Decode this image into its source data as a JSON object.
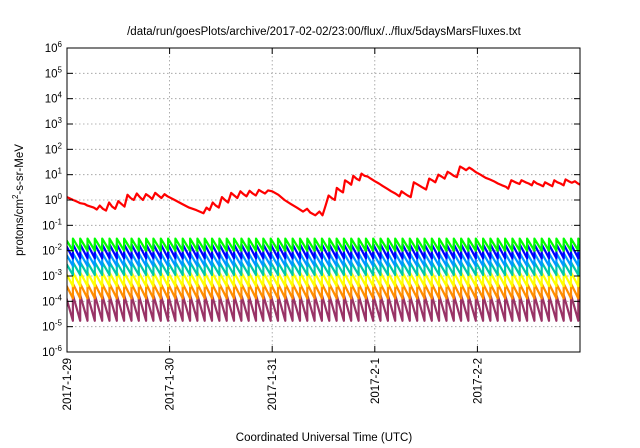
{
  "chart_data": {
    "type": "line",
    "title": "/data/run/goesPlots/archive/2017-02-02/23:00/flux/../flux/5daysMarsFluxes.txt",
    "xlabel": "Coordinated Universal Time (UTC)",
    "ylabel_prefix": "protons/cm",
    "ylabel_superscript": "2",
    "ylabel_suffix": "-s-sr-MeV",
    "x_unit": "day offset from 2017-1-29 00:00 UTC",
    "xlim": [
      0,
      5
    ],
    "x_ticks": [
      {
        "x": 0,
        "label": "2017-1-29"
      },
      {
        "x": 1,
        "label": "2017-1-30"
      },
      {
        "x": 2,
        "label": "2017-1-31"
      },
      {
        "x": 3,
        "label": "2017-2-1"
      },
      {
        "x": 4,
        "label": "2017-2-2"
      }
    ],
    "y_scale": "log",
    "ylim_exponent": [
      -6,
      6
    ],
    "y_ticks": [
      {
        "exp": 6,
        "base": "10",
        "sup": "6"
      },
      {
        "exp": 5,
        "base": "10",
        "sup": "5"
      },
      {
        "exp": 4,
        "base": "10",
        "sup": "4"
      },
      {
        "exp": 3,
        "base": "10",
        "sup": "3"
      },
      {
        "exp": 2,
        "base": "10",
        "sup": "2"
      },
      {
        "exp": 1,
        "base": "10",
        "sup": "1"
      },
      {
        "exp": 0,
        "base": "10",
        "sup": "0"
      },
      {
        "exp": -1,
        "base": "10",
        "sup": "-1"
      },
      {
        "exp": -2,
        "base": "10",
        "sup": "-2"
      },
      {
        "exp": -3,
        "base": "10",
        "sup": "-3"
      },
      {
        "exp": -4,
        "base": "10",
        "sup": "-4"
      },
      {
        "exp": -5,
        "base": "10",
        "sup": "-5"
      },
      {
        "exp": -6,
        "base": "10",
        "sup": "-6"
      }
    ],
    "grid": true,
    "legend": "none",
    "red_series": {
      "color": "#ff0000",
      "points": [
        [
          0.0,
          1.3
        ],
        [
          0.06,
          1.0
        ],
        [
          0.1,
          0.85
        ],
        [
          0.13,
          0.75
        ],
        [
          0.17,
          0.7
        ],
        [
          0.2,
          0.6
        ],
        [
          0.23,
          0.55
        ],
        [
          0.26,
          0.5
        ],
        [
          0.29,
          0.42
        ],
        [
          0.32,
          0.6
        ],
        [
          0.35,
          0.45
        ],
        [
          0.38,
          0.38
        ],
        [
          0.41,
          0.8
        ],
        [
          0.44,
          0.55
        ],
        [
          0.47,
          0.45
        ],
        [
          0.5,
          0.9
        ],
        [
          0.53,
          0.7
        ],
        [
          0.56,
          0.55
        ],
        [
          0.59,
          1.6
        ],
        [
          0.62,
          1.2
        ],
        [
          0.65,
          1.0
        ],
        [
          0.68,
          1.8
        ],
        [
          0.71,
          1.3
        ],
        [
          0.74,
          1.0
        ],
        [
          0.77,
          1.7
        ],
        [
          0.8,
          1.4
        ],
        [
          0.83,
          1.1
        ],
        [
          0.86,
          1.9
        ],
        [
          0.89,
          1.5
        ],
        [
          0.92,
          1.2
        ],
        [
          0.95,
          1.7
        ],
        [
          0.98,
          1.4
        ],
        [
          1.05,
          1.0
        ],
        [
          1.12,
          0.7
        ],
        [
          1.19,
          0.5
        ],
        [
          1.26,
          0.4
        ],
        [
          1.33,
          0.3
        ],
        [
          1.36,
          0.5
        ],
        [
          1.39,
          0.4
        ],
        [
          1.42,
          0.8
        ],
        [
          1.45,
          0.6
        ],
        [
          1.48,
          0.5
        ],
        [
          1.51,
          1.3
        ],
        [
          1.54,
          1.0
        ],
        [
          1.57,
          0.8
        ],
        [
          1.6,
          1.9
        ],
        [
          1.63,
          1.5
        ],
        [
          1.66,
          1.2
        ],
        [
          1.69,
          2.2
        ],
        [
          1.72,
          1.7
        ],
        [
          1.75,
          1.4
        ],
        [
          1.78,
          2.3
        ],
        [
          1.81,
          1.8
        ],
        [
          1.84,
          1.5
        ],
        [
          1.87,
          2.5
        ],
        [
          1.9,
          2.1
        ],
        [
          1.93,
          1.8
        ],
        [
          1.96,
          2.4
        ],
        [
          2.0,
          2.2
        ],
        [
          2.06,
          1.6
        ],
        [
          2.12,
          1.0
        ],
        [
          2.18,
          0.7
        ],
        [
          2.24,
          0.5
        ],
        [
          2.3,
          0.35
        ],
        [
          2.34,
          0.45
        ],
        [
          2.37,
          0.32
        ],
        [
          2.42,
          0.25
        ],
        [
          2.46,
          0.35
        ],
        [
          2.49,
          0.25
        ],
        [
          2.52,
          0.6
        ],
        [
          2.55,
          1.5
        ],
        [
          2.58,
          1.2
        ],
        [
          2.61,
          1.0
        ],
        [
          2.63,
          3.0
        ],
        [
          2.66,
          2.4
        ],
        [
          2.69,
          2.0
        ],
        [
          2.71,
          6.0
        ],
        [
          2.74,
          5.0
        ],
        [
          2.77,
          4.0
        ],
        [
          2.79,
          9.0
        ],
        [
          2.82,
          7.0
        ],
        [
          2.85,
          6.0
        ],
        [
          2.87,
          11.0
        ],
        [
          2.9,
          9.0
        ],
        [
          2.93,
          8.5
        ],
        [
          2.96,
          7.0
        ],
        [
          3.0,
          5.5
        ],
        [
          3.04,
          4.5
        ],
        [
          3.08,
          3.5
        ],
        [
          3.12,
          2.8
        ],
        [
          3.16,
          2.2
        ],
        [
          3.2,
          1.8
        ],
        [
          3.24,
          1.4
        ],
        [
          3.26,
          2.2
        ],
        [
          3.29,
          1.8
        ],
        [
          3.32,
          1.5
        ],
        [
          3.35,
          1.3
        ],
        [
          3.38,
          5.0
        ],
        [
          3.42,
          4.0
        ],
        [
          3.46,
          3.2
        ],
        [
          3.5,
          2.6
        ],
        [
          3.53,
          7.0
        ],
        [
          3.56,
          6.0
        ],
        [
          3.59,
          5.0
        ],
        [
          3.62,
          10.0
        ],
        [
          3.65,
          8.5
        ],
        [
          3.68,
          7.0
        ],
        [
          3.71,
          13.0
        ],
        [
          3.74,
          11.0
        ],
        [
          3.77,
          9.0
        ],
        [
          3.8,
          8.0
        ],
        [
          3.83,
          21.0
        ],
        [
          3.86,
          18.0
        ],
        [
          3.89,
          15.0
        ],
        [
          3.92,
          19.0
        ],
        [
          3.95,
          16.0
        ],
        [
          3.98,
          13.0
        ],
        [
          4.03,
          10.0
        ],
        [
          4.08,
          7.5
        ],
        [
          4.12,
          6.5
        ],
        [
          4.16,
          5.5
        ],
        [
          4.2,
          4.5
        ],
        [
          4.24,
          3.8
        ],
        [
          4.28,
          3.3
        ],
        [
          4.3,
          2.8
        ],
        [
          4.33,
          6.0
        ],
        [
          4.37,
          5.0
        ],
        [
          4.41,
          4.3
        ],
        [
          4.43,
          6.0
        ],
        [
          4.47,
          5.0
        ],
        [
          4.5,
          4.5
        ],
        [
          4.53,
          3.8
        ],
        [
          4.55,
          5.5
        ],
        [
          4.58,
          4.5
        ],
        [
          4.61,
          4.0
        ],
        [
          4.64,
          3.5
        ],
        [
          4.66,
          5.0
        ],
        [
          4.69,
          4.3
        ],
        [
          4.73,
          3.5
        ],
        [
          4.75,
          6.0
        ],
        [
          4.78,
          5.0
        ],
        [
          4.81,
          4.5
        ],
        [
          4.84,
          3.8
        ],
        [
          4.86,
          6.5
        ],
        [
          4.89,
          5.5
        ],
        [
          4.92,
          4.8
        ],
        [
          4.95,
          5.5
        ],
        [
          4.98,
          4.5
        ],
        [
          5.0,
          4.0
        ]
      ]
    },
    "sawtooth_series": [
      {
        "color": "#00ff00",
        "peak": 0.03,
        "trough": 0.01
      },
      {
        "color": "#0000ff",
        "peak": 0.018,
        "trough": 0.005
      },
      {
        "color": "#0099ff",
        "peak": 0.008,
        "trough": 0.0025
      },
      {
        "color": "#00c8a8",
        "peak": 0.0035,
        "trough": 0.0011
      },
      {
        "color": "#ffff00",
        "peak": 0.0014,
        "trough": 0.0004
      },
      {
        "color": "#ff8c00",
        "peak": 0.0005,
        "trough": 0.00013
      },
      {
        "color": "#993366",
        "peak": 0.00018,
        "trough": 1.7e-05
      }
    ],
    "sawtooth_period_days": 0.0714
  }
}
